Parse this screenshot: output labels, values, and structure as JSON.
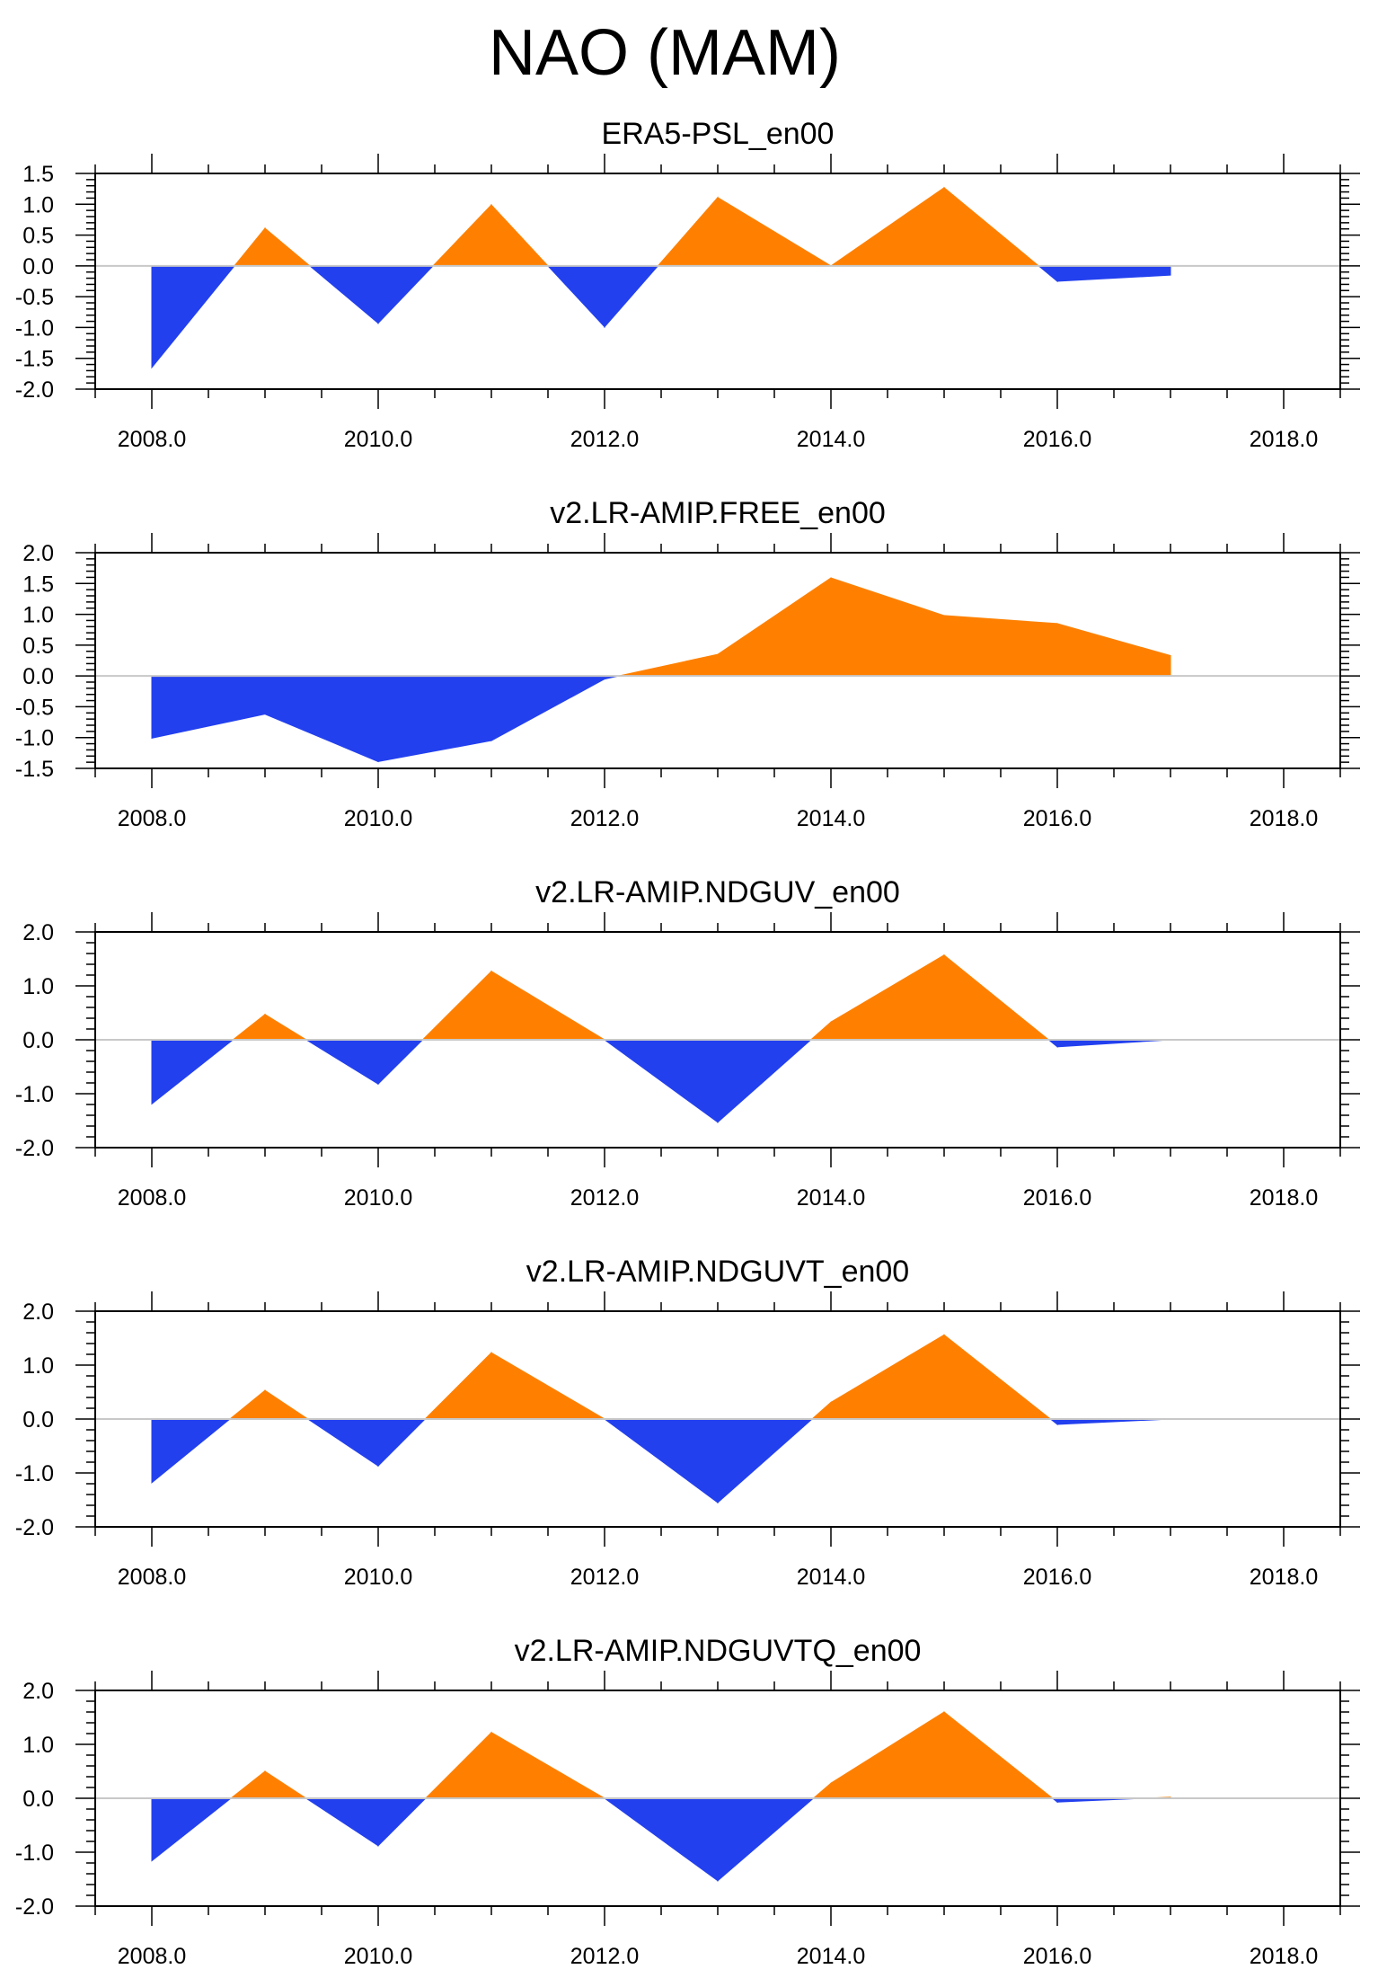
{
  "title": "NAO (MAM)",
  "colors": {
    "positive": "#ff8000",
    "negative": "#2340ee",
    "axis": "#000000",
    "zero_line": "#c8c8c8"
  },
  "chart_data": [
    {
      "type": "area",
      "title": "ERA5-PSL_en00",
      "x": [
        2008,
        2009,
        2010,
        2011,
        2012,
        2013,
        2014,
        2015,
        2016,
        2017
      ],
      "values": [
        -1.65,
        0.61,
        -0.93,
        0.99,
        -0.99,
        1.11,
        0.0,
        1.27,
        -0.25,
        -0.15
      ],
      "xlim": [
        2007.5,
        2018.5
      ],
      "ylim": [
        -2.0,
        1.5
      ],
      "xticks": [
        "2008.0",
        "2010.0",
        "2012.0",
        "2014.0",
        "2016.0",
        "2018.0"
      ],
      "yticks": [
        "1.5",
        "1.0",
        "0.5",
        "0.0",
        "-0.5",
        "-1.0",
        "-1.5",
        "-2.0"
      ]
    },
    {
      "type": "area",
      "title": "v2.LR-AMIP.FREE_en00",
      "x": [
        2008,
        2009,
        2010,
        2011,
        2012,
        2013,
        2014,
        2015,
        2016,
        2017
      ],
      "values": [
        -1.01,
        -0.62,
        -1.39,
        -1.05,
        -0.05,
        0.35,
        1.59,
        0.98,
        0.85,
        0.33
      ],
      "xlim": [
        2007.5,
        2018.5
      ],
      "ylim": [
        -1.5,
        2.0
      ],
      "xticks": [
        "2008.0",
        "2010.0",
        "2012.0",
        "2014.0",
        "2016.0",
        "2018.0"
      ],
      "yticks": [
        "2.0",
        "1.5",
        "1.0",
        "0.5",
        "0.0",
        "-0.5",
        "-1.0",
        "-1.5"
      ]
    },
    {
      "type": "area",
      "title": "v2.LR-AMIP.NDGUV_en00",
      "x": [
        2008,
        2009,
        2010,
        2011,
        2012,
        2013,
        2014,
        2015,
        2016,
        2017
      ],
      "values": [
        -1.19,
        0.47,
        -0.82,
        1.27,
        0.0,
        -1.53,
        0.33,
        1.57,
        -0.13,
        0.0
      ],
      "xlim": [
        2007.5,
        2018.5
      ],
      "ylim": [
        -2.0,
        2.0
      ],
      "xticks": [
        "2008.0",
        "2010.0",
        "2012.0",
        "2014.0",
        "2016.0",
        "2018.0"
      ],
      "yticks": [
        "2.0",
        "1.0",
        "0.0",
        "-1.0",
        "-2.0"
      ]
    },
    {
      "type": "area",
      "title": "v2.LR-AMIP.NDGUVT_en00",
      "x": [
        2008,
        2009,
        2010,
        2011,
        2012,
        2013,
        2014,
        2015,
        2016,
        2017
      ],
      "values": [
        -1.18,
        0.53,
        -0.87,
        1.23,
        0.0,
        -1.55,
        0.31,
        1.56,
        -0.1,
        0.0
      ],
      "xlim": [
        2007.5,
        2018.5
      ],
      "ylim": [
        -2.0,
        2.0
      ],
      "xticks": [
        "2008.0",
        "2010.0",
        "2012.0",
        "2014.0",
        "2016.0",
        "2018.0"
      ],
      "yticks": [
        "2.0",
        "1.0",
        "0.0",
        "-1.0",
        "-2.0"
      ]
    },
    {
      "type": "area",
      "title": "v2.LR-AMIP.NDGUVTQ_en00",
      "x": [
        2008,
        2009,
        2010,
        2011,
        2012,
        2013,
        2014,
        2015,
        2016,
        2017
      ],
      "values": [
        -1.16,
        0.5,
        -0.88,
        1.22,
        0.0,
        -1.53,
        0.28,
        1.6,
        -0.07,
        0.02
      ],
      "xlim": [
        2007.5,
        2018.5
      ],
      "ylim": [
        -2.0,
        2.0
      ],
      "xticks": [
        "2008.0",
        "2010.0",
        "2012.0",
        "2014.0",
        "2016.0",
        "2018.0"
      ],
      "yticks": [
        "2.0",
        "1.0",
        "0.0",
        "-1.0",
        "-2.0"
      ]
    }
  ]
}
